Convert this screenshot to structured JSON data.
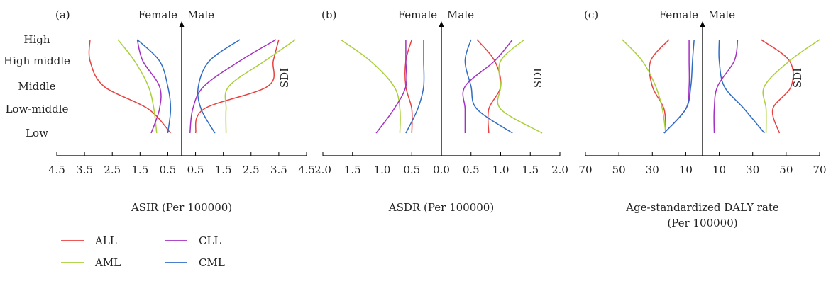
{
  "colors": {
    "ALL": "#e8413f",
    "AML": "#a9cf3a",
    "CLL": "#a330c0",
    "CML": "#2f6dc4"
  },
  "legend": [
    {
      "key": "ALL",
      "label": "ALL"
    },
    {
      "key": "AML",
      "label": "AML"
    },
    {
      "key": "CLL",
      "label": "CLL"
    },
    {
      "key": "CML",
      "label": "CML"
    }
  ],
  "categories": [
    "High",
    "High middle",
    "Middle",
    "Low-middle",
    "Low"
  ],
  "chart_data": [
    {
      "type": "line",
      "panel_label": "(a)",
      "xlabel": [
        "ASIR (Per 100000)"
      ],
      "ylabel": "SDI",
      "left_label": "Female",
      "right_label": "Male",
      "xmax": 4.5,
      "tick_labels": [
        "4.5",
        "3.5",
        "2.5",
        "1.5",
        "0.5",
        "0.5",
        "1.5",
        "2.5",
        "3.5",
        "4.5"
      ],
      "tick_values": [
        -4.5,
        -3.5,
        -2.5,
        -1.5,
        -0.5,
        0.5,
        1.5,
        2.5,
        3.5,
        4.5
      ],
      "series": [
        {
          "key": "ALL",
          "female": [
            3.3,
            3.3,
            2.8,
            1.2,
            0.4
          ],
          "male": [
            3.5,
            3.3,
            3.1,
            0.8,
            0.5
          ]
        },
        {
          "key": "AML",
          "female": [
            2.3,
            1.7,
            1.2,
            1.0,
            0.9
          ],
          "male": [
            4.1,
            3.0,
            1.7,
            1.6,
            1.6
          ]
        },
        {
          "key": "CLL",
          "female": [
            1.6,
            1.4,
            0.8,
            0.8,
            1.1
          ],
          "male": [
            3.4,
            2.1,
            0.8,
            0.4,
            0.3
          ]
        },
        {
          "key": "CML",
          "female": [
            1.6,
            0.8,
            0.5,
            0.4,
            0.5
          ],
          "male": [
            2.1,
            1.0,
            0.6,
            0.7,
            1.2
          ]
        }
      ]
    },
    {
      "type": "line",
      "panel_label": "(b)",
      "xlabel": [
        "ASDR (Per 100000)"
      ],
      "ylabel": "SDI",
      "left_label": "Female",
      "right_label": "Male",
      "xmax": 2.0,
      "tick_labels": [
        "2.0",
        "1.5",
        "1.0",
        "0.5",
        "0.0",
        "0.5",
        "1.0",
        "1.5",
        "2.0"
      ],
      "tick_values": [
        -2.0,
        -1.5,
        -1.0,
        -0.5,
        0.0,
        0.5,
        1.0,
        1.5,
        2.0
      ],
      "series": [
        {
          "key": "ALL",
          "female": [
            0.5,
            0.6,
            0.6,
            0.5,
            0.5
          ],
          "male": [
            0.6,
            0.9,
            1.0,
            0.8,
            0.8
          ]
        },
        {
          "key": "AML",
          "female": [
            1.7,
            1.2,
            0.8,
            0.7,
            0.7
          ],
          "male": [
            1.4,
            1.0,
            1.0,
            1.0,
            1.7
          ]
        },
        {
          "key": "CLL",
          "female": [
            0.6,
            0.6,
            0.6,
            0.8,
            1.1
          ],
          "male": [
            1.2,
            0.9,
            0.4,
            0.4,
            0.4
          ]
        },
        {
          "key": "CML",
          "female": [
            0.3,
            0.3,
            0.3,
            0.4,
            0.6
          ],
          "male": [
            0.5,
            0.4,
            0.5,
            0.6,
            1.2
          ]
        }
      ]
    },
    {
      "type": "line",
      "panel_label": "(c)",
      "xlabel": [
        "Age-standardized DALY rate",
        "(Per 100000)"
      ],
      "ylabel": "SDI",
      "left_label": "Female",
      "right_label": "Male",
      "xmax": 70,
      "tick_labels": [
        "70",
        "50",
        "30",
        "10",
        "10",
        "30",
        "50",
        "70"
      ],
      "tick_values": [
        -70,
        -50,
        -30,
        -10,
        10,
        30,
        50,
        70
      ],
      "series": [
        {
          "key": "ALL",
          "female": [
            20,
            31,
            30,
            23,
            22
          ],
          "male": [
            35,
            52,
            53,
            42,
            46
          ]
        },
        {
          "key": "AML",
          "female": [
            48,
            36,
            28,
            24,
            22
          ],
          "male": [
            70,
            52,
            37,
            38,
            38
          ]
        },
        {
          "key": "CLL",
          "female": [
            8,
            8,
            8,
            10,
            23
          ],
          "male": [
            21,
            19,
            9,
            7,
            7
          ]
        },
        {
          "key": "CML",
          "female": [
            5,
            6,
            7,
            10,
            23
          ],
          "male": [
            10,
            10,
            13,
            25,
            37
          ]
        }
      ]
    }
  ]
}
